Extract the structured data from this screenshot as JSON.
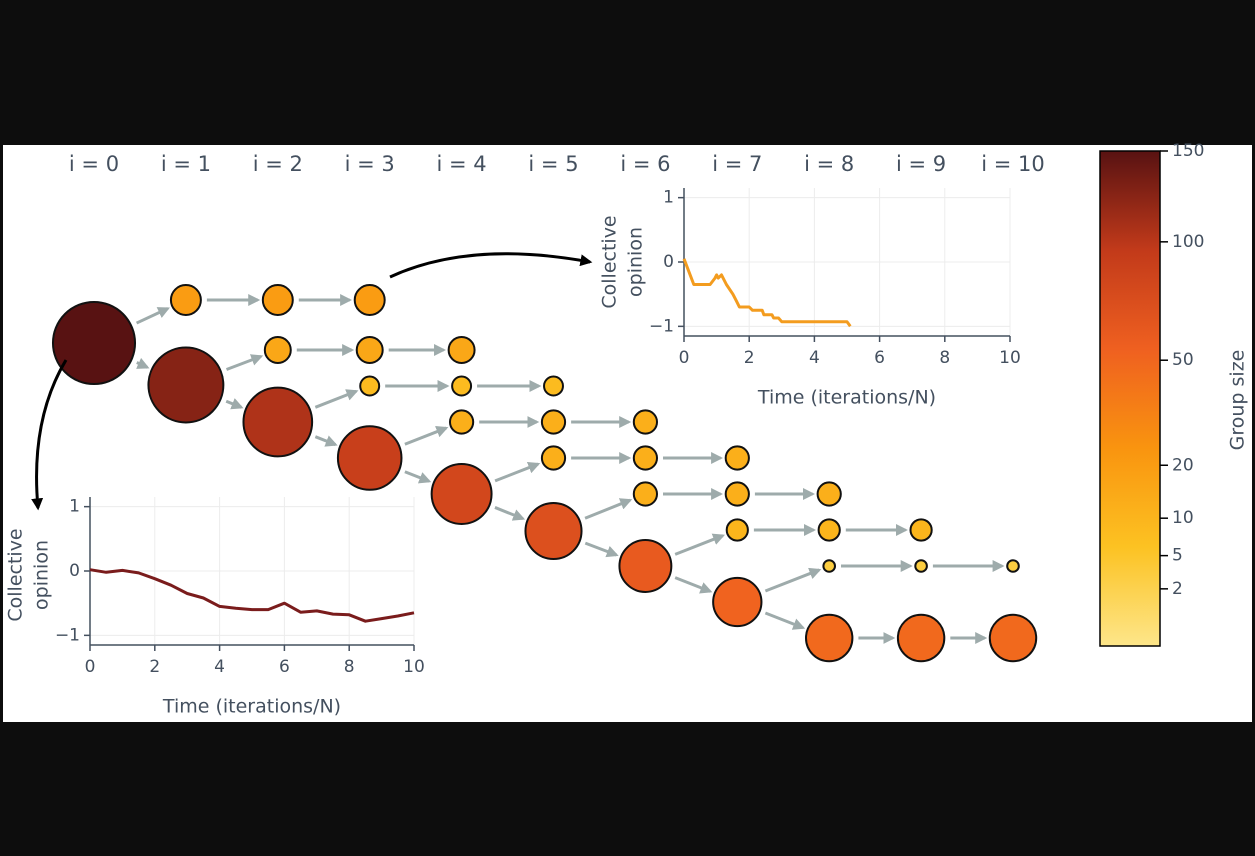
{
  "diagram": {
    "columns": [
      {
        "label": "i = 0",
        "group_sizes": [
          150
        ]
      },
      {
        "label": "i = 1",
        "group_sizes": [
          20,
          125
        ]
      },
      {
        "label": "i = 2",
        "group_sizes": [
          20,
          15,
          105
        ]
      },
      {
        "label": "i = 3",
        "group_sizes": [
          20,
          15,
          8,
          90
        ]
      },
      {
        "label": "i = 4",
        "group_sizes": [
          15,
          8,
          12,
          80
        ]
      },
      {
        "label": "i = 5",
        "group_sizes": [
          8,
          12,
          12,
          70
        ]
      },
      {
        "label": "i = 6",
        "group_sizes": [
          12,
          12,
          12,
          60
        ]
      },
      {
        "label": "i = 7",
        "group_sizes": [
          12,
          12,
          10,
          52
        ]
      },
      {
        "label": "i = 8",
        "group_sizes": [
          12,
          10,
          3,
          48
        ]
      },
      {
        "label": "i = 9",
        "group_sizes": [
          10,
          3,
          48
        ]
      },
      {
        "label": "i = 10",
        "group_sizes": [
          3,
          48
        ]
      }
    ]
  },
  "colorbar": {
    "label": "Group size",
    "clim": [
      0,
      150
    ],
    "scale": "sqrt",
    "ticks": [
      2,
      5,
      10,
      20,
      50,
      100,
      150
    ],
    "colormap": [
      "#fde68a",
      "#fcc222",
      "#f9940f",
      "#ef6020",
      "#c23a1a",
      "#581212"
    ]
  },
  "chart_data": [
    {
      "type": "line",
      "xlabel": "Time (iterations/N)",
      "ylabel": [
        "Collective",
        "opinion"
      ],
      "grid": true,
      "xlim": [
        0,
        10
      ],
      "ylim": [
        -1.15,
        1.15
      ],
      "xticks": [
        0,
        2,
        4,
        6,
        8,
        10
      ],
      "yticks": [
        {
          "value": -1,
          "label": "−1"
        },
        0,
        1
      ],
      "series": [
        {
          "color": "#f39c1f",
          "x": [
            0,
            0.3,
            0.8,
            0.95,
            1.0,
            1.05,
            1.15,
            1.3,
            1.5,
            1.6,
            1.7,
            2.0,
            2.1,
            2.4,
            2.45,
            2.7,
            2.75,
            2.9,
            3.0,
            5.0,
            5.1
          ],
          "values": [
            0.05,
            -0.35,
            -0.35,
            -0.25,
            -0.2,
            -0.25,
            -0.2,
            -0.35,
            -0.5,
            -0.6,
            -0.7,
            -0.7,
            -0.75,
            -0.75,
            -0.82,
            -0.82,
            -0.87,
            -0.87,
            -0.93,
            -0.93,
            -1.0
          ]
        }
      ]
    },
    {
      "type": "line",
      "xlabel": "Time (iterations/N)",
      "ylabel": [
        "Collective",
        "opinion"
      ],
      "grid": true,
      "xlim": [
        0,
        10
      ],
      "ylim": [
        -1.15,
        1.15
      ],
      "xticks": [
        0,
        2,
        4,
        6,
        8,
        10
      ],
      "yticks": [
        {
          "value": -1,
          "label": "−1"
        },
        0,
        1
      ],
      "series": [
        {
          "color": "#7a1c1c",
          "x": [
            0,
            0.5,
            1,
            1.5,
            2,
            2.5,
            3,
            3.5,
            4,
            4.5,
            5,
            5.5,
            6,
            6.5,
            7,
            7.5,
            8,
            8.5,
            9,
            9.5,
            10
          ],
          "values": [
            0.02,
            -0.02,
            0.01,
            -0.03,
            -0.12,
            -0.22,
            -0.35,
            -0.42,
            -0.55,
            -0.58,
            -0.6,
            -0.6,
            -0.5,
            -0.64,
            -0.62,
            -0.67,
            -0.68,
            -0.78,
            -0.74,
            -0.7,
            -0.65
          ]
        }
      ]
    }
  ]
}
